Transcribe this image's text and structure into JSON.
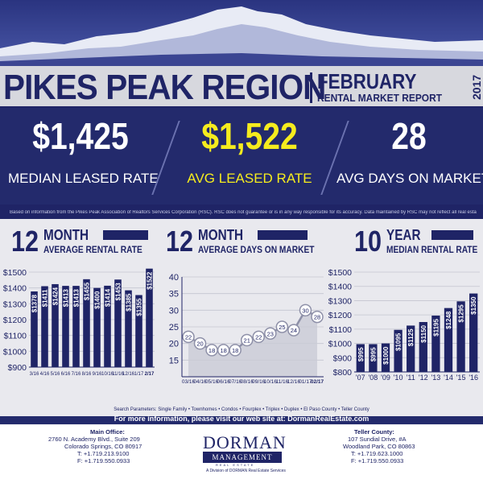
{
  "header": {
    "region": "PIKES PEAK REGION",
    "month": "FEBRUARY",
    "report": "RENTAL MARKET REPORT",
    "year": "2017"
  },
  "stats": [
    {
      "value": "$1,425",
      "label": "MEDIAN LEASED RATE",
      "color": "#ffffff"
    },
    {
      "value": "$1,522",
      "label": "AVG LEASED RATE",
      "color": "#f5ec1e"
    },
    {
      "value": "28",
      "label": "AVG DAYS ON MARKET",
      "color": "#ffffff"
    }
  ],
  "disclaimer": "Based on information from the Pikes Peak Association of Realtors Services Corporation (RSC). RSC does not guarantee or is in any way responsible for its accuracy. Data maintained by RSC may not reflect all real estate activity in the market.",
  "chart_headers": [
    {
      "big": "12",
      "top": "MONTH",
      "sub": "AVERAGE RENTAL RATE"
    },
    {
      "big": "12",
      "top": "MONTH",
      "sub": "AVERAGE DAYS ON MARKET"
    },
    {
      "big": "10",
      "top": "YEAR",
      "sub": "MEDIAN RENTAL RATE"
    }
  ],
  "chart_data": [
    {
      "type": "bar",
      "categories": [
        "3/16",
        "4/16",
        "5/16",
        "6/16",
        "7/16",
        "8/16",
        "9/16",
        "10/16",
        "11/16",
        "12/16",
        "1/17",
        "2/17"
      ],
      "values": [
        1378,
        1411,
        1424,
        1413,
        1413,
        1455,
        1400,
        1414,
        1453,
        1385,
        1355,
        1522
      ],
      "labels": [
        "$1378",
        "$1411",
        "$1424",
        "$1413",
        "$1413",
        "$1455",
        "$1400",
        "$1414",
        "$1453",
        "$1385",
        "$1355",
        "$1522"
      ],
      "ylim": [
        900,
        1500
      ],
      "yticks": [
        "$900",
        "$1000",
        "$1100",
        "$1200",
        "$1300",
        "$1400",
        "$1500"
      ],
      "title": "12 MONTH AVERAGE RENTAL RATE"
    },
    {
      "type": "line",
      "categories": [
        "03/16",
        "04/16",
        "05/16",
        "06/16",
        "07/16",
        "08/16",
        "09/16",
        "10/16",
        "11/16",
        "12/16",
        "01/17",
        "02/17"
      ],
      "values": [
        22,
        20,
        18,
        18,
        18,
        21,
        22,
        23,
        25,
        24,
        30,
        28
      ],
      "ylim": [
        10,
        40
      ],
      "yticks": [
        "15",
        "20",
        "25",
        "30",
        "35",
        "40"
      ],
      "title": "12 MONTH AVERAGE DAYS ON MARKET"
    },
    {
      "type": "bar",
      "categories": [
        "'07",
        "'08",
        "'09",
        "'10",
        "'11",
        "'12",
        "'13",
        "'14",
        "'15",
        "'16"
      ],
      "values": [
        995,
        995,
        1000,
        1095,
        1125,
        1150,
        1195,
        1248,
        1295,
        1350
      ],
      "labels": [
        "$995",
        "$995",
        "$1000",
        "$1095",
        "$1125",
        "$1150",
        "$1195",
        "$1248",
        "$1295",
        "$1350"
      ],
      "ylim": [
        800,
        1500
      ],
      "yticks": [
        "$800",
        "$900",
        "$1000",
        "$1100",
        "$1200",
        "$1300",
        "$1400",
        "$1500"
      ],
      "title": "10 YEAR MEDIAN RENTAL RATE"
    }
  ],
  "search_params": "Search Parameters: Single Family • Townhomes • Condos • Fourplex • Triplex • Duplex • El Paso County • Teller County",
  "more_info": "For more information, please visit our web site at: DormanRealEstate.com",
  "main_office": {
    "heading": "Main Office:",
    "line1": "2760 N. Academy Blvd., Suite 209",
    "line2": "Colorado Springs, CO 80917",
    "phone": "T: +1.719.213.9100",
    "fax": "F: +1.719.550.0933"
  },
  "teller_office": {
    "heading": "Teller County:",
    "line1": "107 Sundial Drive, #A",
    "line2": "Woodland Park, CO 80863",
    "phone": "T: +1.719.623.1000",
    "fax": "F: +1.719.550.0933"
  },
  "logo": {
    "name": "DORMAN",
    "management": "MANAGEMENT",
    "real_estate": "REAL ESTATE",
    "division": "A Division of DORMAN Real Estate Services"
  },
  "colors": {
    "navy": "#1f2466",
    "yellow": "#f5ec1e",
    "panel": "#e9e9ee"
  }
}
